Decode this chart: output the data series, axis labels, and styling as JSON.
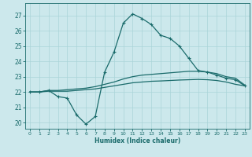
{
  "xlabel": "Humidex (Indice chaleur)",
  "bg_color": "#cce8ec",
  "grid_color": "#aad4d8",
  "line_color": "#1a6b6b",
  "xlim": [
    -0.5,
    23.5
  ],
  "ylim": [
    19.6,
    27.8
  ],
  "yticks": [
    20,
    21,
    22,
    23,
    24,
    25,
    26,
    27
  ],
  "xticks": [
    0,
    1,
    2,
    3,
    4,
    5,
    6,
    7,
    8,
    9,
    10,
    11,
    12,
    13,
    14,
    15,
    16,
    17,
    18,
    19,
    20,
    21,
    22,
    23
  ],
  "curve1_x": [
    0,
    1,
    2,
    3,
    4,
    5,
    6,
    7,
    8,
    9,
    10,
    11,
    12,
    13,
    14,
    15,
    16,
    17,
    18,
    19,
    20,
    21,
    22,
    23
  ],
  "curve1_y": [
    22.0,
    22.0,
    22.1,
    21.7,
    21.6,
    20.5,
    19.9,
    20.4,
    23.3,
    24.6,
    26.5,
    27.1,
    26.8,
    26.4,
    25.7,
    25.5,
    25.0,
    24.2,
    23.4,
    23.3,
    23.1,
    22.9,
    22.8,
    22.4
  ],
  "curve2_x": [
    0,
    1,
    2,
    3,
    4,
    5,
    6,
    7,
    8,
    9,
    10,
    11,
    12,
    13,
    14,
    15,
    16,
    17,
    18,
    19,
    20,
    21,
    22,
    23
  ],
  "curve2_y": [
    22.0,
    22.0,
    22.1,
    22.1,
    22.15,
    22.2,
    22.25,
    22.35,
    22.5,
    22.65,
    22.85,
    23.0,
    23.1,
    23.15,
    23.2,
    23.25,
    23.3,
    23.35,
    23.35,
    23.3,
    23.2,
    23.0,
    22.9,
    22.45
  ],
  "curve3_x": [
    0,
    1,
    2,
    3,
    4,
    5,
    6,
    7,
    8,
    9,
    10,
    11,
    12,
    13,
    14,
    15,
    16,
    17,
    18,
    19,
    20,
    21,
    22,
    23
  ],
  "curve3_y": [
    22.0,
    22.0,
    22.05,
    22.05,
    22.05,
    22.1,
    22.15,
    22.2,
    22.3,
    22.4,
    22.5,
    22.6,
    22.65,
    22.7,
    22.72,
    22.75,
    22.78,
    22.8,
    22.82,
    22.8,
    22.75,
    22.65,
    22.5,
    22.4
  ]
}
